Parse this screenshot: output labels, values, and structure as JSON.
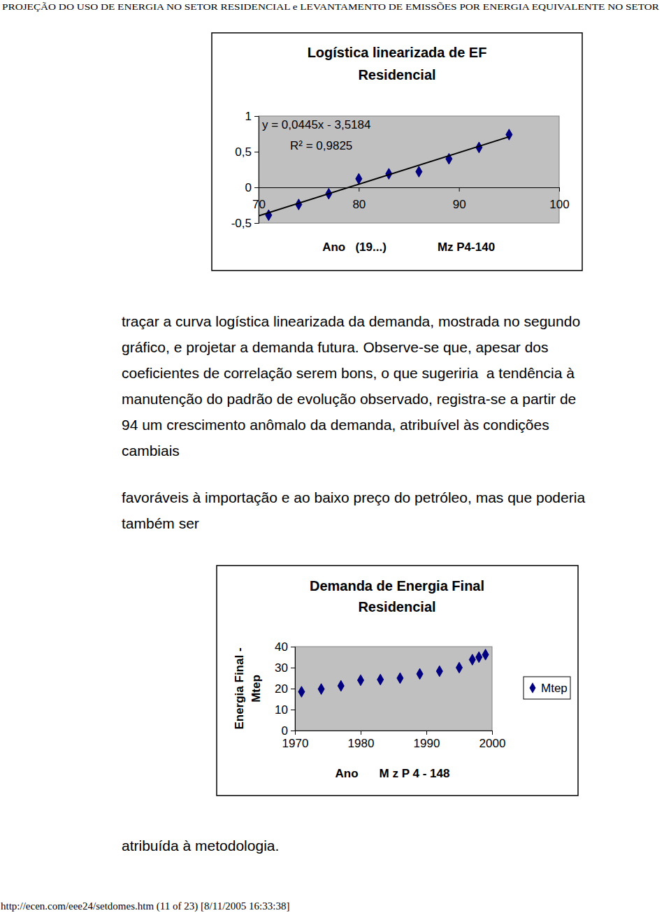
{
  "header": "PROJEÇÃO DO USO DE ENERGIA NO SETOR RESIDENCIAL e LEVANTAMENTO DE EMISSÕES POR ENERGIA EQUIVALENTE NO SETOR",
  "chart_data": [
    {
      "type": "scatter",
      "title": [
        "Logística linearizada de EF",
        "Residencial"
      ],
      "x_label": "Ano   (19...)",
      "annotations": [
        "y = 0,0445x - 3,5184",
        "R² = 0,9825",
        "Mz P4-140"
      ],
      "xlim": [
        70,
        100
      ],
      "xticks": [
        70,
        80,
        90,
        100
      ],
      "ylim": [
        -0.5,
        1
      ],
      "yticks": [
        {
          "value": -0.5,
          "label": "-0,5"
        },
        0,
        {
          "value": 0.5,
          "label": "0,5"
        },
        1
      ],
      "grid": false,
      "series": [
        {
          "type": "scatter",
          "marker": "diamond",
          "color": "#000080",
          "x": [
            71,
            74,
            77,
            80,
            83,
            86,
            89,
            92,
            95
          ],
          "values": [
            -0.39,
            -0.24,
            -0.09,
            0.12,
            0.19,
            0.22,
            0.4,
            0.56,
            0.74
          ]
        },
        {
          "type": "line",
          "line_style": "solid",
          "color": "#000000",
          "x": [
            70,
            95
          ],
          "values": [
            -0.4,
            0.71
          ]
        }
      ]
    },
    {
      "type": "scatter",
      "title": [
        "Demanda de Energia Final",
        "Residencial"
      ],
      "x_label": "Ano",
      "y_label": [
        "Energia Final -",
        "Mtep"
      ],
      "annotations": [
        "M z P 4 - 148"
      ],
      "xlim": [
        1970,
        2000
      ],
      "xticks": [
        1970,
        1980,
        1990,
        2000
      ],
      "ylim": [
        0,
        40
      ],
      "yticks": [
        0,
        10,
        20,
        30,
        40
      ],
      "grid": false,
      "legend": "right",
      "series": [
        {
          "name": "Mtep",
          "type": "scatter",
          "marker": "diamond",
          "color": "#000080",
          "x": [
            1971,
            1974,
            1977,
            1980,
            1983,
            1986,
            1989,
            1992,
            1995,
            1997,
            1998,
            1999
          ],
          "values": [
            18.5,
            19.8,
            21.3,
            24,
            24.3,
            25,
            27,
            28.3,
            30,
            33.8,
            35,
            36.2
          ]
        }
      ]
    }
  ],
  "paragraphs": [
    [
      "traçar a curva logística linearizada da demanda, mostrada no segundo",
      "gráfico, e projetar a demanda futura. Observe-se que, apesar dos",
      "coeficientes de correlação serem bons, o que sugeriria  a tendência à",
      "manutenção do padrão de evolução observado, registra-se a partir de",
      "94 um crescimento anômalo da demanda, atribuível às condições",
      "cambiais"
    ],
    [
      "favoráveis à importação e ao baixo preço do petróleo, mas que poderia",
      "também ser"
    ],
    [
      "atribuída à metodologia."
    ]
  ],
  "footer": "http://ecen.com/eee24/setdomes.htm (11 of 23) [8/11/2005 16:33:38]"
}
